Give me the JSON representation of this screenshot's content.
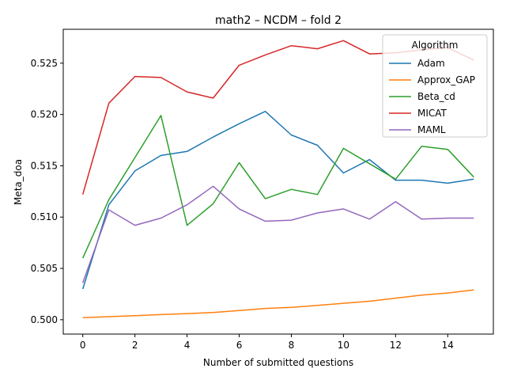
{
  "chart_data": {
    "type": "line",
    "title": "math2 – NCDM – fold 2",
    "xlabel": "Number of submitted questions",
    "ylabel": "Meta_doa",
    "xlim": [
      -0.75,
      15.75
    ],
    "ylim": [
      0.4986,
      0.5283
    ],
    "xticks": [
      0,
      2,
      4,
      6,
      8,
      10,
      12,
      14
    ],
    "yticks": [
      0.5,
      0.505,
      0.51,
      0.515,
      0.52,
      0.525
    ],
    "ytick_labels": [
      "0.500",
      "0.505",
      "0.510",
      "0.515",
      "0.520",
      "0.525"
    ],
    "legend": {
      "title": "Algorithm",
      "placement": "top-right"
    },
    "x": [
      0,
      1,
      2,
      3,
      4,
      5,
      6,
      7,
      8,
      9,
      10,
      11,
      12,
      13,
      14,
      15
    ],
    "series": [
      {
        "name": "Adam",
        "color": "#1f77b4",
        "values": [
          0.503,
          0.5112,
          0.5145,
          0.516,
          0.5164,
          0.5178,
          0.5191,
          0.5203,
          0.518,
          0.517,
          0.5143,
          0.5156,
          0.5136,
          0.5136,
          0.5133,
          0.5137
        ]
      },
      {
        "name": "Approx_GAP",
        "color": "#ff7f0e",
        "values": [
          0.5002,
          0.5003,
          0.5004,
          0.5005,
          0.5006,
          0.5007,
          0.5009,
          0.5011,
          0.5012,
          0.5014,
          0.5016,
          0.5018,
          0.5021,
          0.5024,
          0.5026,
          0.5029
        ]
      },
      {
        "name": "Beta_cd",
        "color": "#2ca02c",
        "values": [
          0.506,
          0.5117,
          0.5158,
          0.5199,
          0.5092,
          0.5113,
          0.5153,
          0.5118,
          0.5127,
          0.5122,
          0.5167,
          0.5152,
          0.5137,
          0.5169,
          0.5166,
          0.5139
        ]
      },
      {
        "name": "MICAT",
        "color": "#d62728",
        "values": [
          0.5122,
          0.5211,
          0.5237,
          0.5236,
          0.5222,
          0.5216,
          0.5248,
          0.5258,
          0.5267,
          0.5264,
          0.5272,
          0.5259,
          0.526,
          0.5263,
          0.5265,
          0.5253
        ]
      },
      {
        "name": "MAML",
        "color": "#9467bd",
        "values": [
          0.5036,
          0.5107,
          0.5092,
          0.5099,
          0.5112,
          0.513,
          0.5108,
          0.5096,
          0.5097,
          0.5104,
          0.5108,
          0.5098,
          0.5115,
          0.5098,
          0.5099,
          0.5099
        ]
      }
    ]
  }
}
